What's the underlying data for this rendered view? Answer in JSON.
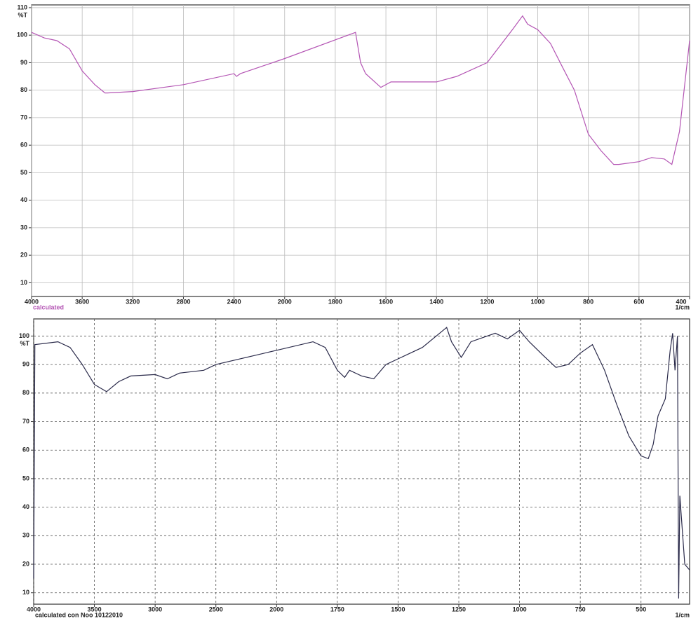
{
  "chart_data": [
    {
      "type": "line",
      "x_label": "1/cm",
      "y_label": "%T",
      "caption": "calculated",
      "grid": "solid",
      "xlim": [
        4000,
        400
      ],
      "xticks": [
        4000,
        3600,
        3200,
        2800,
        2400,
        2000,
        1800,
        1600,
        1400,
        1200,
        1000,
        800,
        600,
        400
      ],
      "ylim": [
        5,
        111
      ],
      "yticks": [
        10,
        20,
        30,
        40,
        50,
        60,
        70,
        80,
        90,
        100,
        110
      ],
      "series": [
        {
          "color": "#b455b4",
          "x": [
            4000,
            3900,
            3800,
            3700,
            3600,
            3500,
            3420,
            3400,
            3200,
            2800,
            2400,
            2380,
            2350,
            2000,
            1720,
            1700,
            1680,
            1620,
            1580,
            1400,
            1320,
            1200,
            1100,
            1060,
            1040,
            1000,
            950,
            900,
            855,
            800,
            750,
            700,
            680,
            600,
            550,
            500,
            470,
            440,
            400
          ],
          "values": [
            101,
            99,
            98,
            95,
            87,
            82,
            79,
            79,
            79.5,
            82,
            86,
            85,
            86,
            91.5,
            101,
            90,
            86,
            81,
            83,
            83,
            85,
            90,
            102,
            107,
            104,
            102,
            97,
            88,
            80,
            64,
            58,
            53,
            53,
            54,
            55.5,
            55,
            53,
            65,
            98
          ]
        }
      ]
    },
    {
      "type": "line",
      "x_label": "1/cm",
      "y_label": "%T",
      "caption": "calculated con Noo 10122010",
      "grid": "dashed",
      "xlim": [
        4000,
        300
      ],
      "xticks": [
        4000,
        3500,
        3000,
        2500,
        2000,
        1750,
        1500,
        1250,
        1000,
        750,
        500
      ],
      "ylim": [
        6,
        106
      ],
      "yticks": [
        10,
        20,
        30,
        40,
        50,
        60,
        70,
        80,
        90,
        100
      ],
      "series": [
        {
          "color": "#2a2a4a",
          "x": [
            4000,
            3990,
            3800,
            3700,
            3600,
            3500,
            3400,
            3300,
            3200,
            3000,
            2900,
            2800,
            2600,
            2500,
            2000,
            1850,
            1800,
            1750,
            1720,
            1700,
            1650,
            1600,
            1550,
            1500,
            1400,
            1300,
            1280,
            1240,
            1200,
            1100,
            1050,
            1000,
            960,
            900,
            850,
            800,
            750,
            700,
            650,
            600,
            550,
            500,
            470,
            450,
            430,
            400,
            380,
            370,
            360,
            350,
            345,
            340,
            320,
            300
          ],
          "values": [
            15,
            97,
            98,
            96,
            90,
            83,
            80.5,
            84,
            86,
            86.5,
            85,
            87,
            88,
            90,
            95,
            98,
            96,
            88,
            85.5,
            88,
            86,
            85,
            90,
            92,
            96,
            103,
            98,
            92.5,
            98,
            101,
            99,
            102,
            98,
            93,
            89,
            90,
            94,
            97,
            88,
            76,
            65,
            58,
            57,
            62,
            72,
            78,
            95,
            101,
            88,
            100,
            8,
            44,
            20,
            18
          ]
        }
      ]
    }
  ]
}
